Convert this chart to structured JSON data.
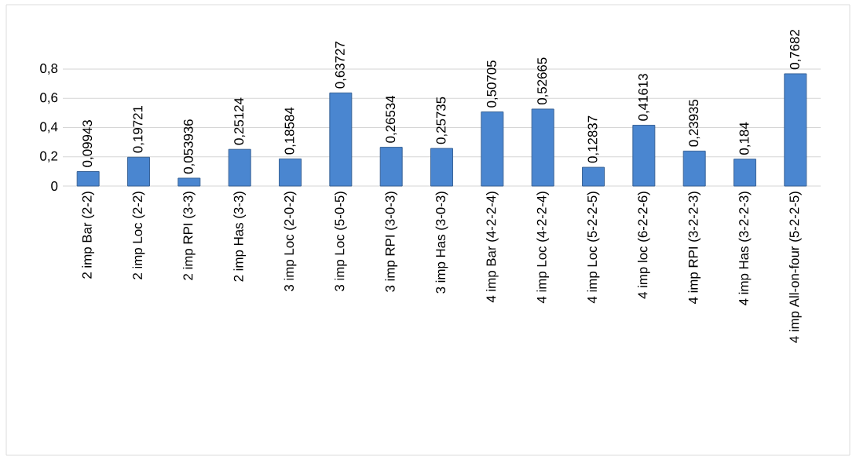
{
  "chart_data": {
    "type": "bar",
    "categories": [
      "2 imp Bar (2-2)",
      "2 imp Loc (2-2)",
      "2 imp RPI (3-3)",
      "2 imp Has (3-3)",
      "3 imp Loc (2-0-2)",
      "3 imp Loc (5-0-5)",
      "3 imp RPI (3-0-3)",
      "3 imp Has (3-0-3)",
      "4 imp Bar (4-2-2-4)",
      "4 imp Loc (4-2-2-4)",
      "4 imp Loc (5-2-2-5)",
      "4 imp loc (6-2-2-6)",
      "4 imp RPI (3-2-2-3)",
      "4 imp Has (3-2-2-3)",
      "4 imp All-on-four (5-2-2-5)"
    ],
    "values": [
      0.09943,
      0.19721,
      0.053936,
      0.25124,
      0.18584,
      0.63727,
      0.26534,
      0.25735,
      0.50705,
      0.52665,
      0.12837,
      0.41613,
      0.23935,
      0.184,
      0.7682
    ],
    "value_labels": [
      "0,09943",
      "0,19721",
      "0,053936",
      "0,25124",
      "0,18584",
      "0,63727",
      "0,26534",
      "0,25735",
      "0,50705",
      "0,52665",
      "0,12837",
      "0,41613",
      "0,23935",
      "0,184",
      "0,7682"
    ],
    "color": "#4a86d0",
    "ylim": [
      0,
      0.8
    ],
    "yticks": [
      0,
      {
        "value": 0.2,
        "label": "0,2"
      },
      {
        "value": 0.4,
        "label": "0,4"
      },
      {
        "value": 0.6,
        "label": "0,6"
      },
      {
        "value": 0.8,
        "label": "0,8"
      }
    ],
    "grid": "y"
  }
}
